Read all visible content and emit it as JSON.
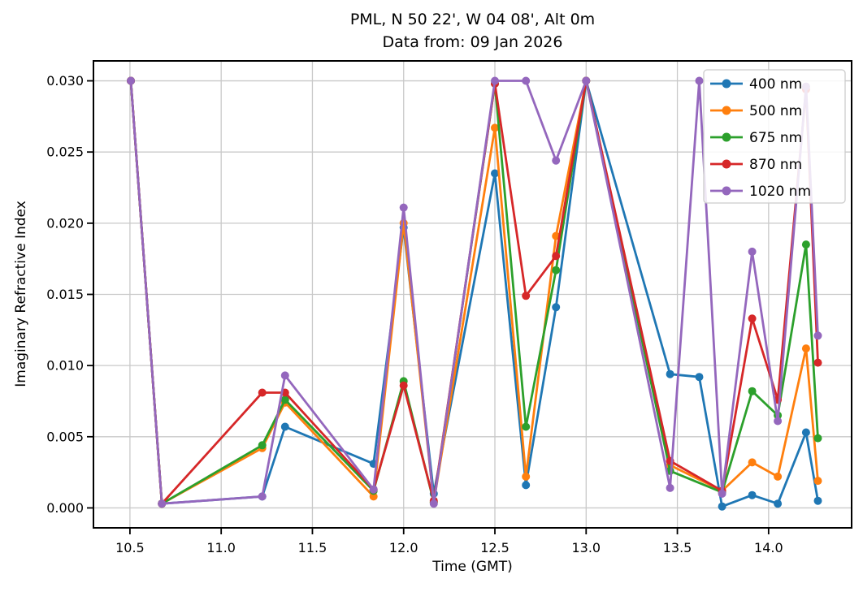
{
  "chart_data": {
    "type": "line",
    "title": "PML, N 50 22', W 04 08', Alt 0m",
    "subtitle": "Data from: 09 Jan 2026",
    "xlabel": "Time (GMT)",
    "ylabel": "Imaginary Refractive Index",
    "xlim": [
      10.3,
      14.455
    ],
    "ylim": [
      -0.0014,
      0.0314
    ],
    "xticks": [
      10.5,
      11.0,
      11.5,
      12.0,
      12.5,
      13.0,
      13.5,
      14.0
    ],
    "yticks": [
      0.0,
      0.005,
      0.01,
      0.015,
      0.02,
      0.025,
      0.03
    ],
    "grid": true,
    "legend_position": "upper right",
    "series": [
      {
        "name": "400 nm",
        "color": "#1f77b4",
        "points": [
          [
            10.505,
            0.03
          ],
          [
            10.675,
            0.0003
          ],
          [
            11.225,
            0.0008
          ],
          [
            11.35,
            0.0057
          ],
          [
            11.835,
            0.0031
          ],
          [
            12.0,
            0.0197
          ],
          [
            12.165,
            0.001
          ],
          [
            12.5,
            0.0235
          ],
          [
            12.67,
            0.0016
          ],
          [
            12.835,
            0.0141
          ],
          [
            13.0,
            0.03
          ],
          [
            13.46,
            0.0094
          ],
          [
            13.62,
            0.0092
          ],
          [
            13.745,
            0.0001
          ],
          [
            13.91,
            0.0009
          ],
          [
            14.05,
            0.0003
          ],
          [
            14.205,
            0.0053
          ],
          [
            14.27,
            0.0005
          ]
        ]
      },
      {
        "name": "500 nm",
        "color": "#ff7f0e",
        "points": [
          [
            10.505,
            0.03
          ],
          [
            10.675,
            0.0003
          ],
          [
            11.225,
            0.0042
          ],
          [
            11.35,
            0.0074
          ],
          [
            11.835,
            0.0008
          ],
          [
            12.0,
            0.02
          ],
          [
            12.165,
            0.0004
          ],
          [
            12.5,
            0.0267
          ],
          [
            12.67,
            0.0022
          ],
          [
            12.835,
            0.0191
          ],
          [
            13.0,
            0.03
          ],
          [
            13.46,
            0.003
          ],
          [
            13.745,
            0.0012
          ],
          [
            13.91,
            0.0032
          ],
          [
            14.05,
            0.0022
          ],
          [
            14.205,
            0.0112
          ],
          [
            14.27,
            0.0019
          ]
        ]
      },
      {
        "name": "675 nm",
        "color": "#2ca02c",
        "points": [
          [
            10.505,
            0.03
          ],
          [
            10.675,
            0.0003
          ],
          [
            11.225,
            0.0044
          ],
          [
            11.35,
            0.0076
          ],
          [
            11.835,
            0.0012
          ],
          [
            12.0,
            0.0089
          ],
          [
            12.165,
            0.0004
          ],
          [
            12.5,
            0.0298
          ],
          [
            12.67,
            0.0057
          ],
          [
            12.835,
            0.0167
          ],
          [
            13.0,
            0.03
          ],
          [
            13.46,
            0.0026
          ],
          [
            13.745,
            0.0011
          ],
          [
            13.91,
            0.0082
          ],
          [
            14.05,
            0.0065
          ],
          [
            14.205,
            0.0185
          ],
          [
            14.27,
            0.0049
          ]
        ]
      },
      {
        "name": "870 nm",
        "color": "#d62728",
        "points": [
          [
            10.505,
            0.03
          ],
          [
            10.675,
            0.0003
          ],
          [
            11.225,
            0.0081
          ],
          [
            11.35,
            0.0081
          ],
          [
            11.835,
            0.0013
          ],
          [
            12.0,
            0.0086
          ],
          [
            12.165,
            0.0005
          ],
          [
            12.5,
            0.0298
          ],
          [
            12.67,
            0.0149
          ],
          [
            12.835,
            0.0177
          ],
          [
            13.0,
            0.03
          ],
          [
            13.46,
            0.0033
          ],
          [
            13.745,
            0.0012
          ],
          [
            13.91,
            0.0133
          ],
          [
            14.05,
            0.0076
          ],
          [
            14.205,
            0.0294
          ],
          [
            14.27,
            0.0102
          ]
        ]
      },
      {
        "name": "1020 nm",
        "color": "#9467bd",
        "points": [
          [
            10.505,
            0.03
          ],
          [
            10.675,
            0.0003
          ],
          [
            11.225,
            0.0008
          ],
          [
            11.35,
            0.0093
          ],
          [
            11.835,
            0.0013
          ],
          [
            12.0,
            0.0211
          ],
          [
            12.165,
            0.0003
          ],
          [
            12.5,
            0.03
          ],
          [
            12.67,
            0.03
          ],
          [
            12.835,
            0.0244
          ],
          [
            13.0,
            0.03
          ],
          [
            13.46,
            0.0014
          ],
          [
            13.62,
            0.03
          ],
          [
            13.745,
            0.001
          ],
          [
            13.91,
            0.018
          ],
          [
            14.05,
            0.0061
          ],
          [
            14.205,
            0.0296
          ],
          [
            14.27,
            0.0121
          ]
        ]
      }
    ],
    "style": {
      "grid_color": "#c9c9c9",
      "spine_color": "#000000",
      "legend_border_color": "#cccccc",
      "legend_background": "#ffffff"
    }
  }
}
